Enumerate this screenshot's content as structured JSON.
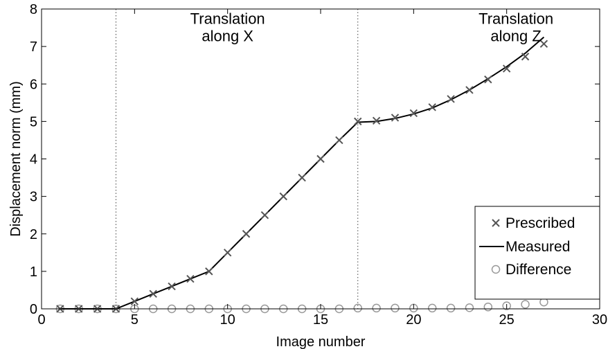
{
  "chart_data": {
    "type": "line",
    "title": "",
    "xlabel": "Image number",
    "ylabel": "Displacement norm (mm)",
    "xlim": [
      0,
      30
    ],
    "ylim": [
      0,
      8
    ],
    "xticks": [
      0,
      5,
      10,
      15,
      20,
      25,
      30
    ],
    "yticks": [
      0,
      1,
      2,
      3,
      4,
      5,
      6,
      7,
      8
    ],
    "grid": false,
    "legend_position": "bottom-right",
    "vlines": [
      4,
      17
    ],
    "annotations": [
      {
        "x": 10,
        "y": 7.6,
        "lines": [
          "Translation",
          "along X"
        ]
      },
      {
        "x": 25.5,
        "y": 7.6,
        "lines": [
          "Translation",
          "along Z"
        ]
      }
    ],
    "series": [
      {
        "name": "Prescribed",
        "style": "cross",
        "color": "#555555",
        "x": [
          1,
          2,
          3,
          4,
          5,
          6,
          7,
          8,
          9,
          10,
          11,
          12,
          13,
          14,
          15,
          16,
          17,
          18,
          19,
          20,
          21,
          22,
          23,
          24,
          25,
          26,
          27
        ],
        "y": [
          0,
          0,
          0,
          0,
          0.2,
          0.4,
          0.6,
          0.8,
          1.0,
          1.5,
          2.0,
          2.5,
          3.0,
          3.5,
          4.0,
          4.5,
          5.0,
          5.02,
          5.1,
          5.22,
          5.38,
          5.6,
          5.84,
          6.12,
          6.41,
          6.73,
          7.07
        ]
      },
      {
        "name": "Measured",
        "style": "line",
        "color": "#000000",
        "x": [
          1,
          2,
          3,
          4,
          5,
          6,
          7,
          8,
          9,
          10,
          11,
          12,
          13,
          14,
          15,
          16,
          17,
          18,
          19,
          20,
          21,
          22,
          23,
          24,
          25,
          26,
          27
        ],
        "y": [
          0,
          0,
          0,
          0,
          0.2,
          0.4,
          0.6,
          0.8,
          1.0,
          1.5,
          2.0,
          2.5,
          3.0,
          3.5,
          4.0,
          4.5,
          4.98,
          5.0,
          5.08,
          5.2,
          5.36,
          5.58,
          5.84,
          6.14,
          6.46,
          6.82,
          7.25
        ]
      },
      {
        "name": "Difference",
        "style": "circle",
        "color": "#999999",
        "x": [
          1,
          2,
          3,
          4,
          5,
          6,
          7,
          8,
          9,
          10,
          11,
          12,
          13,
          14,
          15,
          16,
          17,
          18,
          19,
          20,
          21,
          22,
          23,
          24,
          25,
          26,
          27
        ],
        "y": [
          0,
          0,
          0,
          0,
          0,
          0,
          0,
          0,
          0,
          0,
          0,
          0,
          0,
          0,
          0,
          0,
          0.02,
          0.02,
          0.02,
          0.02,
          0.02,
          0.02,
          0.03,
          0.05,
          0.08,
          0.12,
          0.18
        ]
      }
    ]
  }
}
